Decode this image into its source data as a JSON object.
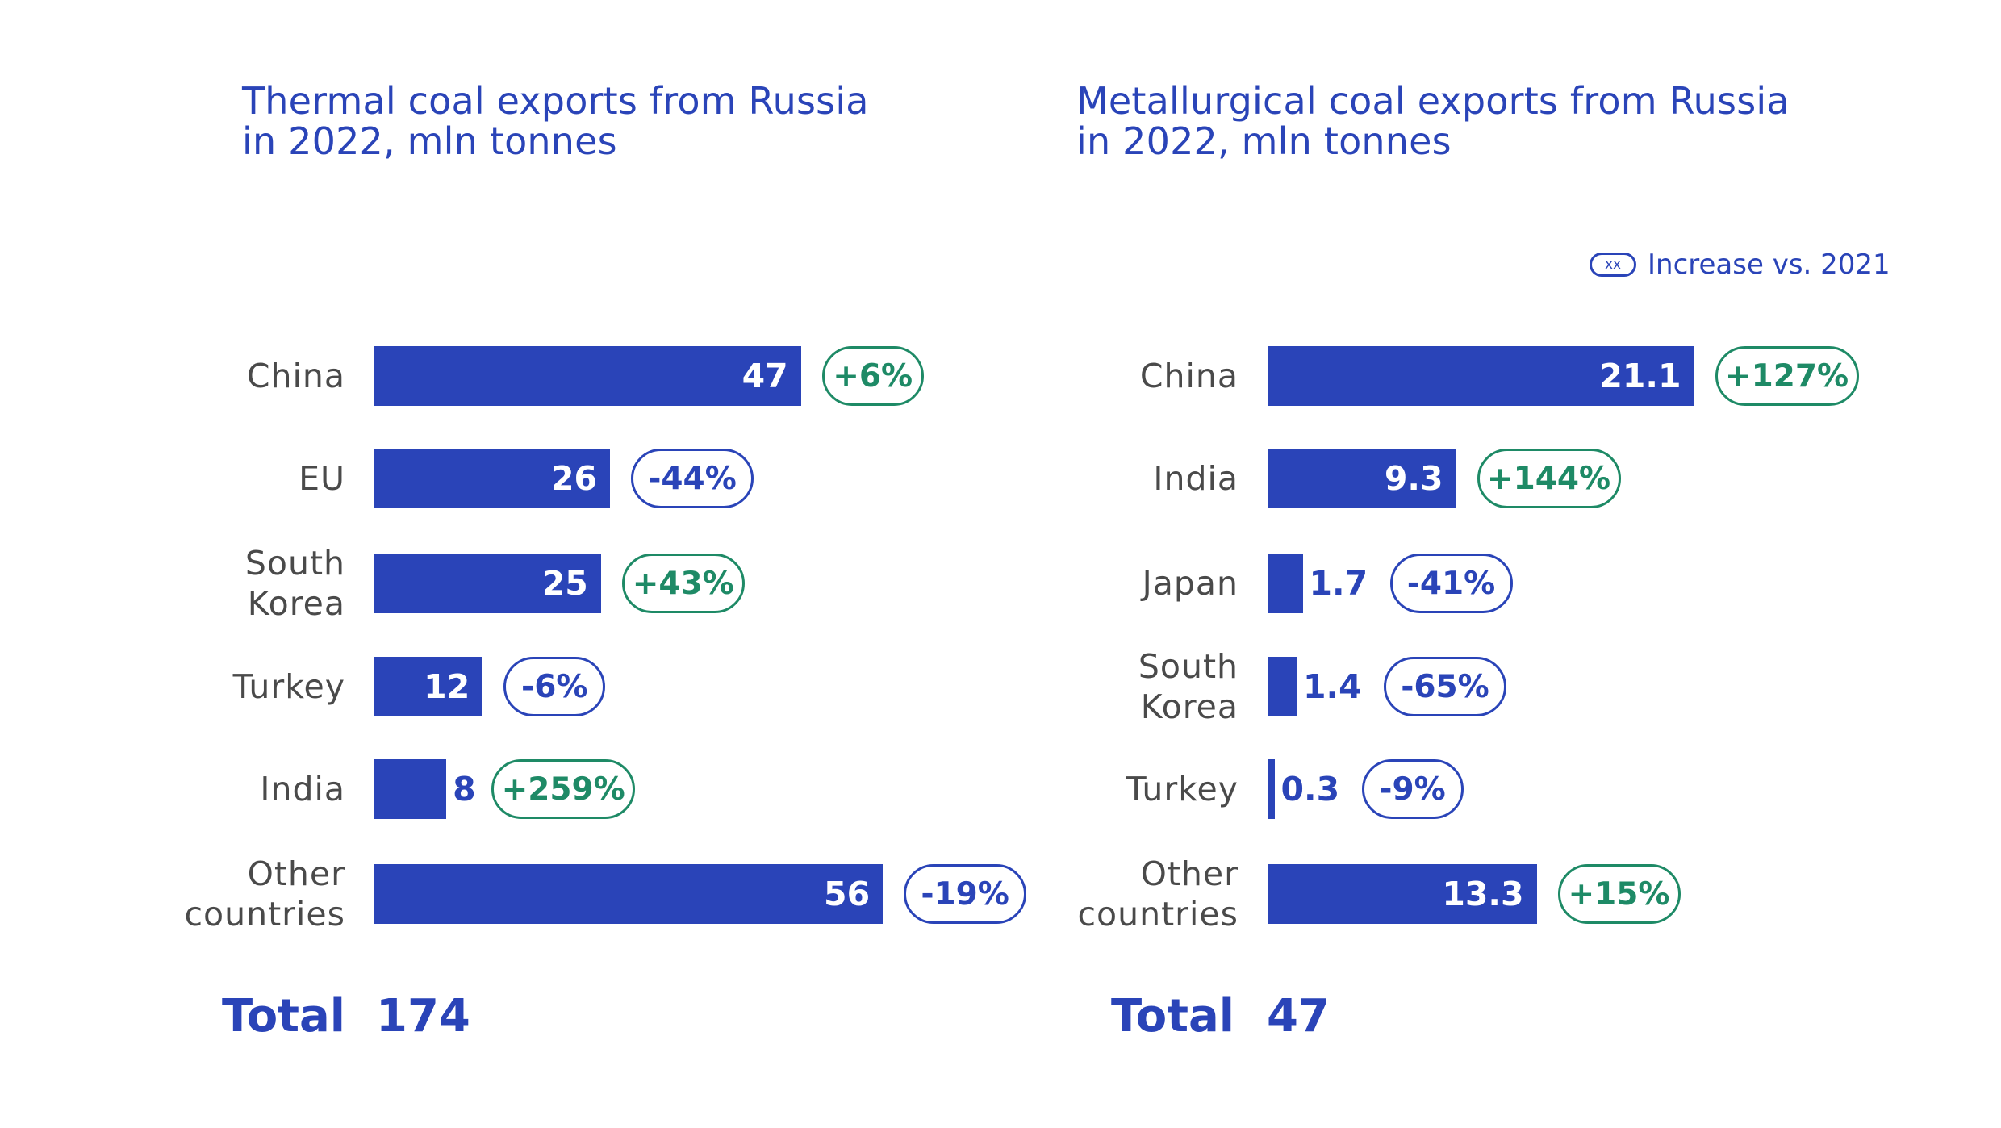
{
  "legend": {
    "sample": "xx",
    "text": "Increase vs. 2021"
  },
  "chart_data": [
    {
      "type": "bar",
      "orientation": "horizontal",
      "title": "Thermal coal exports from Russia\nin 2022, mln tonnes",
      "categories": [
        "China",
        "EU",
        "South\nKorea",
        "Turkey",
        "India",
        "Other\ncountries"
      ],
      "values": [
        47,
        26,
        25,
        12,
        8,
        56
      ],
      "value_labels": [
        "47",
        "26",
        "25",
        "12",
        "8",
        "56"
      ],
      "changes": [
        "+6%",
        "-44%",
        "+43%",
        "-6%",
        "+259%",
        "-19%"
      ],
      "total_label": "Total",
      "total_value": "174",
      "colors": {
        "bar": "#2a44b8",
        "increase": "#1e8a66",
        "decrease": "#2a44b8"
      }
    },
    {
      "type": "bar",
      "orientation": "horizontal",
      "title": "Metallurgical coal exports from Russia\nin 2022, mln tonnes",
      "categories": [
        "China",
        "India",
        "Japan",
        "South\nKorea",
        "Turkey",
        "Other\ncountries"
      ],
      "values": [
        21.1,
        9.3,
        1.7,
        1.4,
        0.3,
        13.3
      ],
      "value_labels": [
        "21.1",
        "9.3",
        "1.7",
        "1.4",
        "0.3",
        "13.3"
      ],
      "changes": [
        "+127%",
        "+144%",
        "-41%",
        "-65%",
        "-9%",
        "+15%"
      ],
      "total_label": "Total",
      "total_value": "47",
      "colors": {
        "bar": "#2a44b8",
        "increase": "#1e8a66",
        "decrease": "#2a44b8"
      }
    }
  ]
}
